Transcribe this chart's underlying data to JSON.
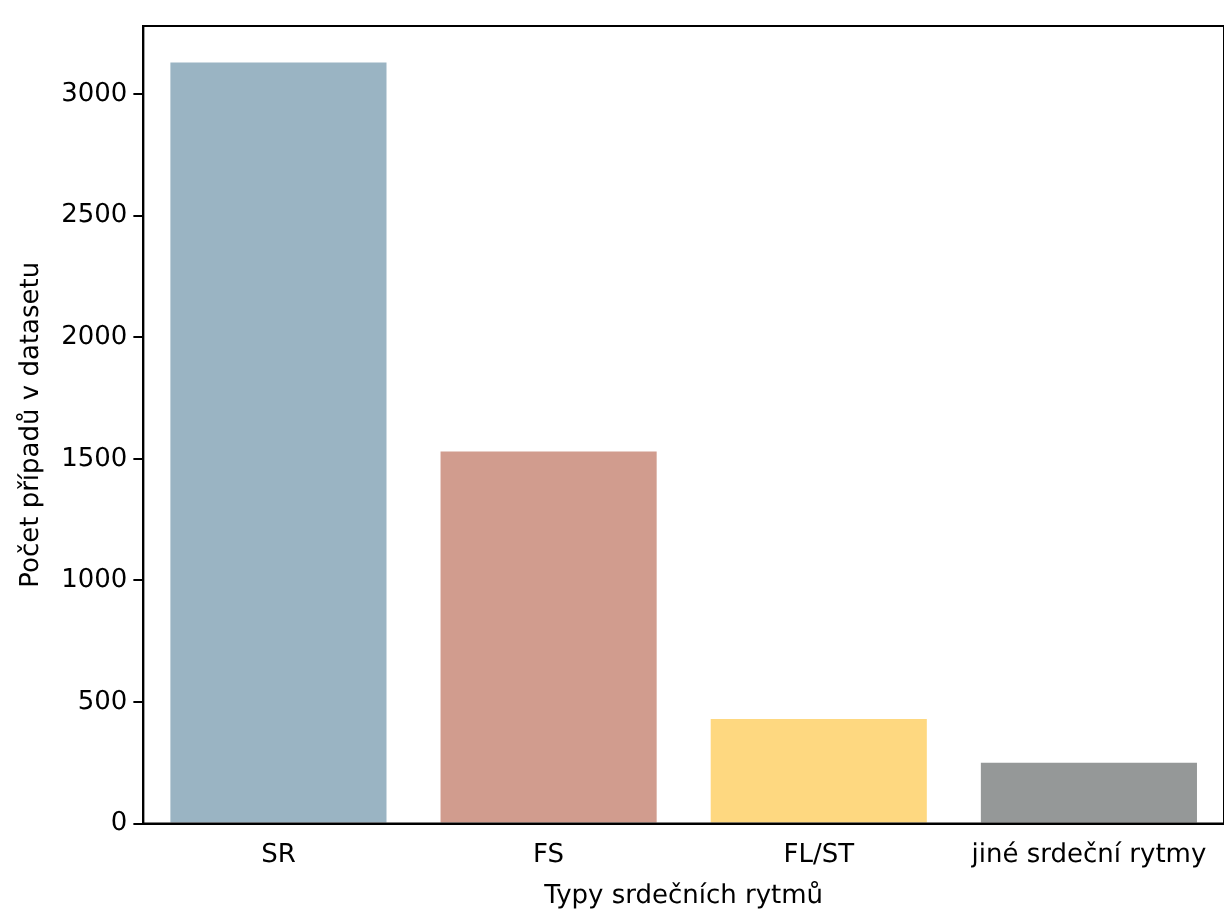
{
  "chart_data": {
    "type": "bar",
    "xlabel": "Typy srdečních rytmů",
    "ylabel": "Počet případů v datasetu",
    "categories": [
      "SR",
      "FS",
      "FL/ST",
      "jiné srdeční rytmy"
    ],
    "values": [
      3130,
      1530,
      430,
      250
    ],
    "colors": [
      "#9ab4c3",
      "#d19c8e",
      "#fed880",
      "#959898"
    ],
    "ylim": [
      0,
      3280
    ],
    "yticks": [
      0,
      500,
      1000,
      1500,
      2000,
      2500,
      3000
    ],
    "grid": false,
    "legend": false
  }
}
